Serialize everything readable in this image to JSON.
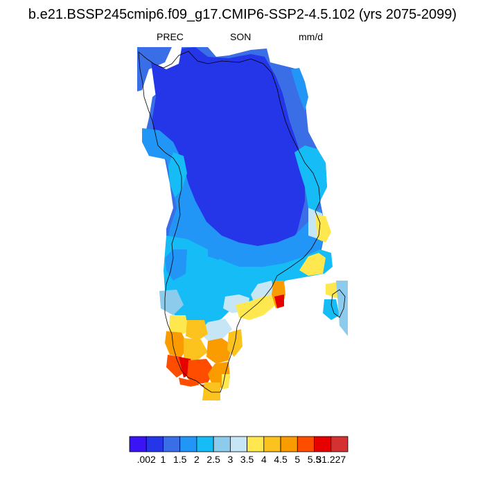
{
  "title": "b.e21.BSSP245cmip6.f09_g17.CMIP6-SSP2-4.5.102 (yrs 2075-2099)",
  "subtitles": {
    "left": "PREC",
    "center": "SON",
    "right": "mm/d"
  },
  "legend": {
    "colors": [
      "#3b14f5",
      "#2535e8",
      "#3a6ee6",
      "#2196f6",
      "#16bcf5",
      "#8ccbeb",
      "#c6e6f5",
      "#ffe84f",
      "#fcc21e",
      "#fa9b00",
      "#ff4d00",
      "#e60000",
      "#d43232"
    ],
    "labels": [
      ".002",
      "1",
      "1.5",
      "2",
      "2.5",
      "3",
      "3.5",
      "4",
      "4.5",
      "5",
      "5.5",
      "31.227"
    ]
  }
}
